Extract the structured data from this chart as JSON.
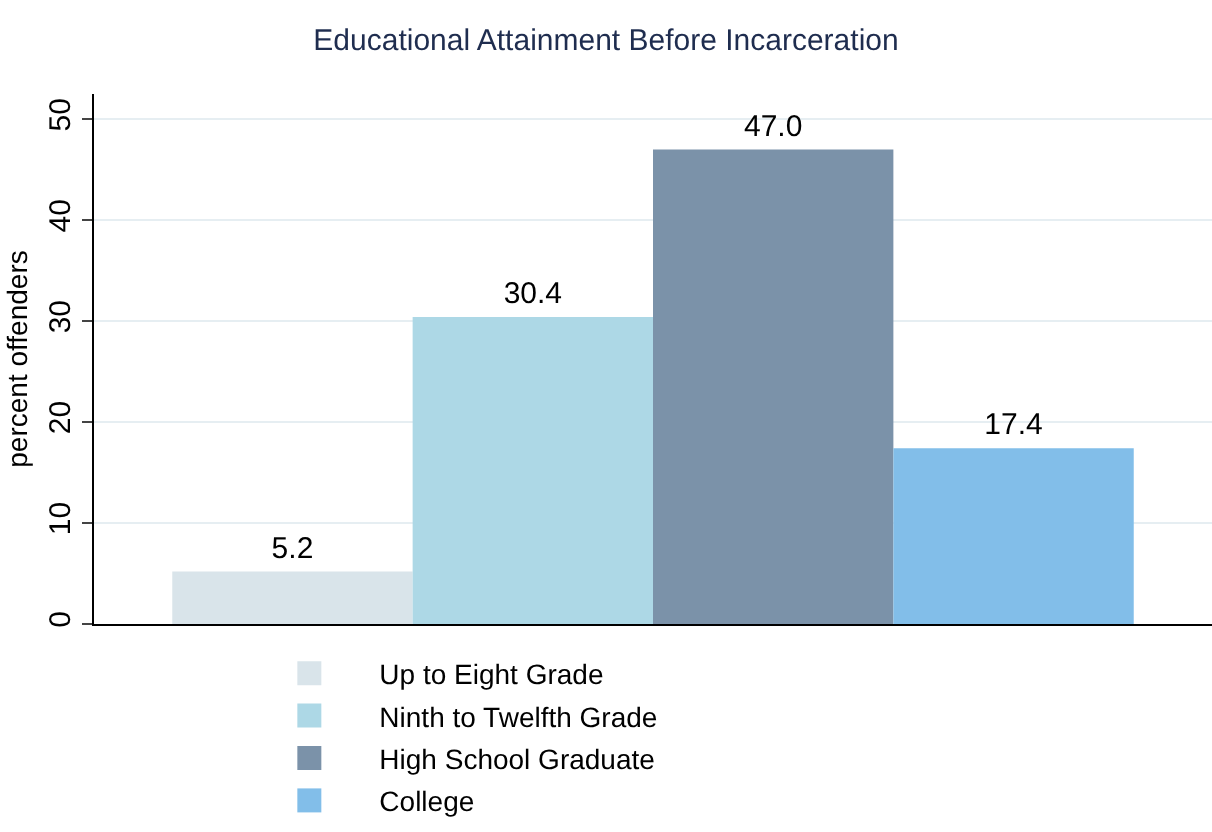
{
  "chart_data": {
    "type": "bar",
    "title": "Educational Attainment Before Incarceration",
    "ylabel": "percent offenders",
    "categories": [
      null
    ],
    "series": [
      {
        "name": "Up to Eight Grade",
        "color": "#d9e4ea",
        "values": [
          5.2
        ]
      },
      {
        "name": "Ninth to Twelfth Grade",
        "color": "#add8e6",
        "values": [
          30.4
        ]
      },
      {
        "name": "High School Graduate",
        "color": "#7b92a9",
        "values": [
          47.0
        ]
      },
      {
        "name": "College",
        "color": "#82bee9",
        "values": [
          17.4
        ]
      }
    ],
    "value_labels": [
      "5.2",
      "30.4",
      "47.0",
      "17.4"
    ],
    "ylim": [
      0,
      52.5
    ],
    "yticks": [
      0,
      10,
      20,
      30,
      40,
      50
    ],
    "grid": "y",
    "legend": "bottom"
  }
}
